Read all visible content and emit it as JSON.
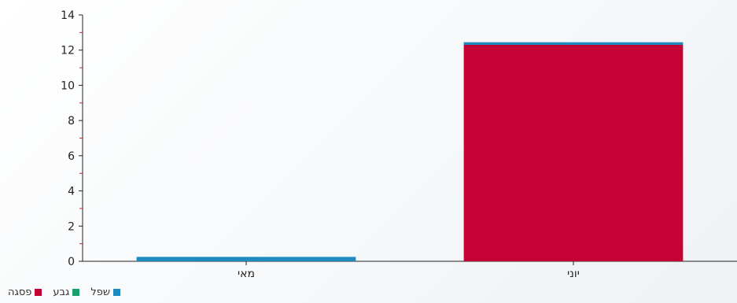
{
  "chart_data": {
    "type": "bar",
    "stacked": true,
    "categories": [
      "מאי",
      "יוני"
    ],
    "series": [
      {
        "name": "פסגה",
        "color": "#c40233",
        "values": [
          0.0,
          12.3
        ]
      },
      {
        "name": "גבע",
        "color": "#1aa06d",
        "values": [
          0.0,
          0.0
        ]
      },
      {
        "name": "שפל",
        "color": "#1f8ac0",
        "values": [
          0.25,
          0.15
        ]
      }
    ],
    "ylim": [
      0,
      14
    ],
    "yticks": [
      0,
      2,
      4,
      6,
      8,
      10,
      12,
      14
    ],
    "grid": false,
    "legend_position": "bottom-left"
  },
  "legend": {
    "items": [
      {
        "label": "פסגה",
        "color": "#c40233"
      },
      {
        "label": "גבע",
        "color": "#1aa06d"
      },
      {
        "label": "שפל",
        "color": "#1f8ac0"
      }
    ]
  }
}
